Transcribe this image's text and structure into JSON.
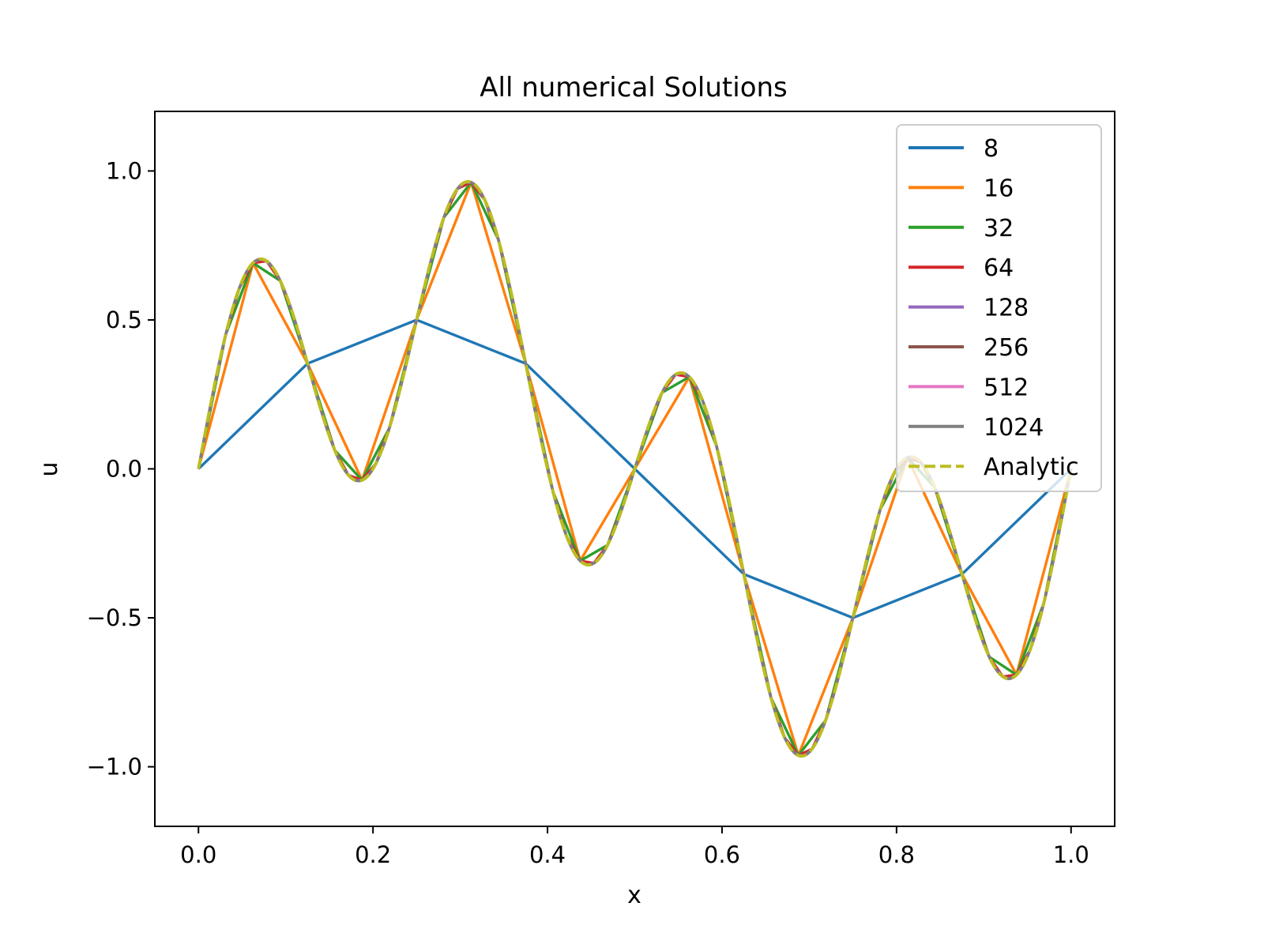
{
  "chart_data": {
    "type": "line",
    "title": "All numerical Solutions",
    "xlabel": "x",
    "ylabel": "u",
    "xlim": [
      -0.05,
      1.05
    ],
    "ylim": [
      -1.2,
      1.2
    ],
    "xticks": [
      0.0,
      0.2,
      0.4,
      0.6,
      0.8,
      1.0
    ],
    "xtick_labels": [
      "0.0",
      "0.2",
      "0.4",
      "0.6",
      "0.8",
      "1.0"
    ],
    "yticks": [
      -1.0,
      -0.5,
      0.0,
      0.5,
      1.0
    ],
    "ytick_labels": [
      "−1.0",
      "−0.5",
      "0.0",
      "0.5",
      "1.0"
    ],
    "grid": false,
    "legend_position": "top-right",
    "function": "u(x) = 0.5*sin(2*pi*x) + 0.5*sin(8*pi*x)",
    "series": [
      {
        "name": "8",
        "points": 8,
        "color": "#1f77b4",
        "style": "solid"
      },
      {
        "name": "16",
        "points": 16,
        "color": "#ff7f0e",
        "style": "solid"
      },
      {
        "name": "32",
        "points": 32,
        "color": "#2ca02c",
        "style": "solid"
      },
      {
        "name": "64",
        "points": 64,
        "color": "#d62728",
        "style": "solid"
      },
      {
        "name": "128",
        "points": 128,
        "color": "#9467bd",
        "style": "solid"
      },
      {
        "name": "256",
        "points": 256,
        "color": "#8c564b",
        "style": "solid"
      },
      {
        "name": "512",
        "points": 512,
        "color": "#e377c2",
        "style": "solid"
      },
      {
        "name": "1024",
        "points": 1024,
        "color": "#7f7f7f",
        "style": "solid"
      },
      {
        "name": "Analytic",
        "points": 1024,
        "color": "#bcbd22",
        "style": "dashed"
      }
    ]
  }
}
